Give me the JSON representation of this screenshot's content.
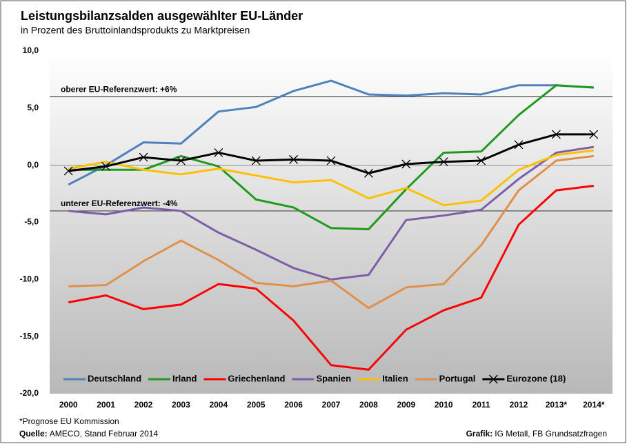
{
  "chart_data": {
    "type": "line",
    "title": "Leistungsbilanzsalden ausgewählter EU-Länder",
    "subtitle": "in Prozent des Bruttoinlandsprodukts  zu Marktpreisen",
    "categories": [
      "2000",
      "2001",
      "2002",
      "2003",
      "2004",
      "2005",
      "2006",
      "2007",
      "2008",
      "2009",
      "2010",
      "2011",
      "2012",
      "2013*",
      "2014*"
    ],
    "series": [
      {
        "name": "Deutschland",
        "color": "#4f81bd",
        "values": [
          -1.7,
          0.0,
          2.0,
          1.9,
          4.7,
          5.1,
          6.5,
          7.4,
          6.2,
          6.1,
          6.3,
          6.2,
          7.0,
          7.0,
          6.8
        ]
      },
      {
        "name": "Irland",
        "color": "#1e9a1e",
        "values": [
          -0.4,
          -0.4,
          -0.4,
          0.8,
          -0.1,
          -3.0,
          -3.7,
          -5.5,
          -5.6,
          -2.1,
          1.1,
          1.2,
          4.4,
          7.0,
          6.8
        ]
      },
      {
        "name": "Griechenland",
        "color": "#ff0000",
        "values": [
          -12.0,
          -11.4,
          -12.6,
          -12.2,
          -10.4,
          -10.8,
          -13.6,
          -17.5,
          -17.9,
          -14.4,
          -12.7,
          -11.6,
          -5.2,
          -2.2,
          -1.8
        ]
      },
      {
        "name": "Spanien",
        "color": "#7b5ea7",
        "values": [
          -4.0,
          -4.3,
          -3.7,
          -4.0,
          -5.9,
          -7.4,
          -9.0,
          -10.0,
          -9.6,
          -4.8,
          -4.4,
          -3.9,
          -1.2,
          1.1,
          1.6
        ]
      },
      {
        "name": "Italien",
        "color": "#ffc000",
        "values": [
          -0.3,
          0.3,
          -0.4,
          -0.8,
          -0.3,
          -0.9,
          -1.5,
          -1.3,
          -2.9,
          -2.0,
          -3.5,
          -3.1,
          -0.4,
          0.9,
          1.3
        ]
      },
      {
        "name": "Portugal",
        "color": "#e0904a",
        "values": [
          -10.6,
          -10.5,
          -8.4,
          -6.6,
          -8.3,
          -10.3,
          -10.6,
          -10.1,
          -12.5,
          -10.7,
          -10.4,
          -7.0,
          -2.2,
          0.4,
          0.8
        ]
      },
      {
        "name": "Eurozone (18)",
        "color": "#000000",
        "marker": "x",
        "values": [
          -0.5,
          -0.1,
          0.7,
          0.4,
          1.1,
          0.4,
          0.5,
          0.4,
          -0.7,
          0.1,
          0.3,
          0.4,
          1.8,
          2.7,
          2.7
        ]
      }
    ],
    "ylim": [
      -20,
      10
    ],
    "yticks": [
      {
        "value": -20,
        "label": "-20,0"
      },
      {
        "value": -15,
        "label": "-15,0"
      },
      {
        "value": -10,
        "label": "-10,0"
      },
      {
        "value": -5,
        "label": "-5,0"
      },
      {
        "value": 0,
        "label": "0,0"
      },
      {
        "value": 5,
        "label": "5,0"
      },
      {
        "value": 10,
        "label": "10,0"
      }
    ],
    "reference_lines": [
      {
        "value": 6,
        "label": "oberer EU-Referenzwert: +6%"
      },
      {
        "value": -4,
        "label": "unterer EU-Referenzwert: -4%"
      }
    ],
    "legend": "bottom",
    "footnote": "*Prognose EU Kommission",
    "source": {
      "label": "Quelle:",
      "text": "AMECO, Stand Februar 2014"
    },
    "credit": {
      "label": "Grafik:",
      "text": "IG Metall, FB Grundsatzfragen"
    }
  }
}
